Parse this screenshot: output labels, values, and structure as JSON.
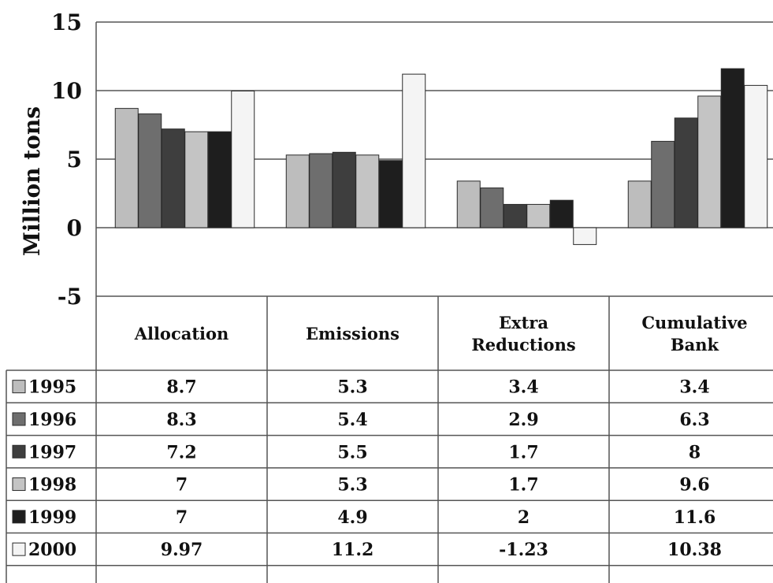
{
  "chart_data": {
    "type": "bar",
    "title": "",
    "xlabel": "",
    "ylabel": "Million tons",
    "ylim": [
      -5,
      15
    ],
    "yticks": [
      "15",
      "10",
      "5",
      "0",
      "-5"
    ],
    "grid": true,
    "legend": "data-table-left",
    "categories": [
      "Allocation",
      "Emissions",
      "Extra Reductions",
      "Cumulative Bank"
    ],
    "category_lines": [
      [
        "Allocation"
      ],
      [
        "Emissions"
      ],
      [
        "Extra",
        "Reductions"
      ],
      [
        "Cumulative",
        "Bank"
      ]
    ],
    "series": [
      {
        "name": "1995",
        "color": "#bdbdbd",
        "values": [
          8.7,
          5.3,
          3.4,
          3.4
        ],
        "labels": [
          "8.7",
          "5.3",
          "3.4",
          "3.4"
        ]
      },
      {
        "name": "1996",
        "color": "#6e6e6e",
        "values": [
          8.3,
          5.4,
          2.9,
          6.3
        ],
        "labels": [
          "8.3",
          "5.4",
          "2.9",
          "6.3"
        ]
      },
      {
        "name": "1997",
        "color": "#3e3e3e",
        "values": [
          7.2,
          5.5,
          1.7,
          8
        ],
        "labels": [
          "7.2",
          "5.5",
          "1.7",
          "8"
        ]
      },
      {
        "name": "1998",
        "color": "#c4c4c4",
        "values": [
          7,
          5.3,
          1.7,
          9.6
        ],
        "labels": [
          "7",
          "5.3",
          "1.7",
          "9.6"
        ]
      },
      {
        "name": "1999",
        "color": "#1e1e1e",
        "values": [
          7,
          4.9,
          2,
          11.6
        ],
        "labels": [
          "7",
          "4.9",
          "2",
          "11.6"
        ]
      },
      {
        "name": "2000",
        "color": "#f4f4f4",
        "values": [
          9.97,
          11.2,
          -1.23,
          10.38
        ],
        "labels": [
          "9.97",
          "11.2",
          "-1.23",
          "10.38"
        ]
      }
    ]
  }
}
